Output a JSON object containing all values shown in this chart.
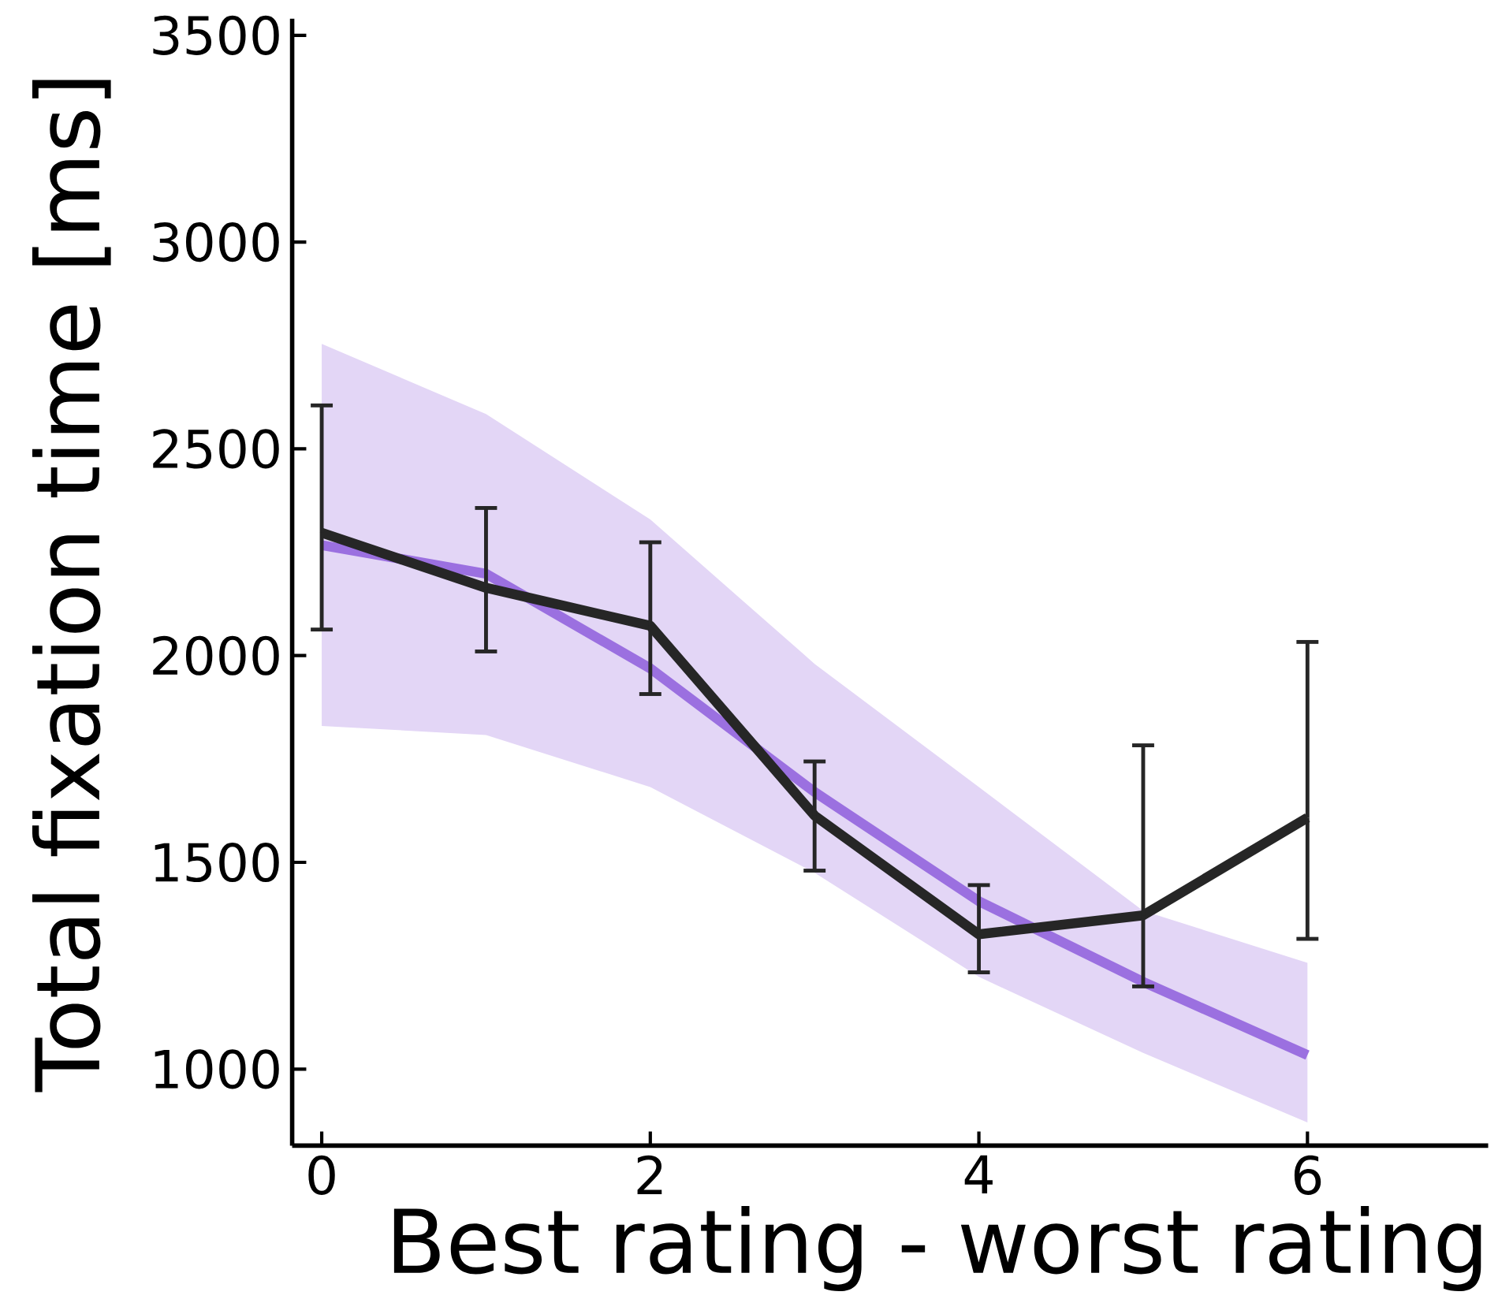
{
  "chart_data": {
    "type": "line",
    "xlabel": "Best rating - worst rating",
    "ylabel": "Total fixation time [ms]",
    "x": [
      0,
      1,
      2,
      3,
      4,
      5,
      6
    ],
    "xlim": [
      -0.18,
      7.1
    ],
    "ylim": [
      815,
      3540
    ],
    "xticks": [
      0,
      2,
      4,
      6
    ],
    "yticks": [
      1000,
      1500,
      2000,
      2500,
      3000,
      3500
    ],
    "grid": false,
    "series": [
      {
        "color": "#9b70e0",
        "values": [
          2267,
          2198,
          1969,
          1670,
          1406,
          1211,
          1034
        ],
        "lower": [
          1830,
          1808,
          1682,
          1475,
          1223,
          1039,
          871
        ],
        "upper": [
          2754,
          2584,
          2329,
          1980,
          1682,
          1383,
          1257
        ]
      },
      {
        "color": "#262626",
        "values": [
          2297,
          2164,
          2072,
          1613,
          1326,
          1372,
          1608
        ],
        "errors": [
          [
            2063,
            2605
          ],
          [
            2010,
            2357
          ],
          [
            1907,
            2274
          ],
          [
            1480,
            1744
          ],
          [
            1234,
            1445
          ],
          [
            1200,
            1783
          ],
          [
            1315,
            2033
          ]
        ]
      }
    ]
  }
}
